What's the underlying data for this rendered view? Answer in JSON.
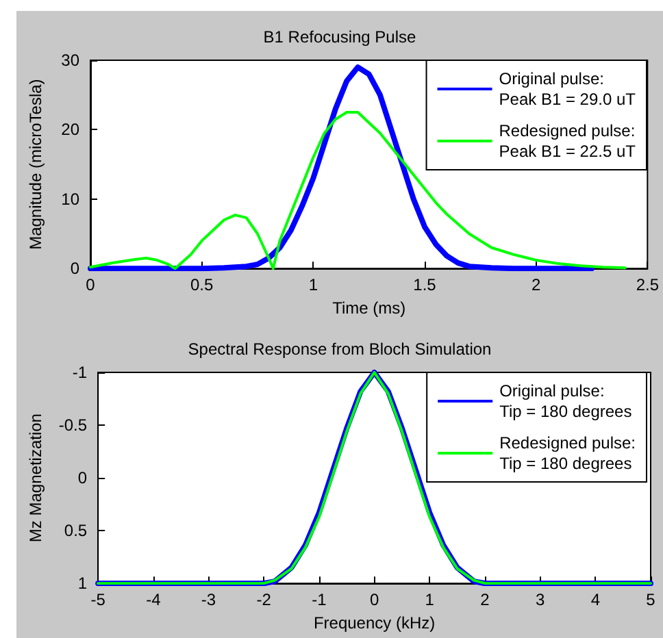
{
  "chart_data": [
    {
      "type": "line",
      "title": "B1 Refocusing Pulse",
      "xlabel": "Time (ms)",
      "ylabel": "Magnitude (microTesla)",
      "xlim": [
        0,
        2.5
      ],
      "xticks": [
        0,
        0.5,
        1,
        1.5,
        2,
        2.5
      ],
      "ylim": [
        0,
        30
      ],
      "yticks": [
        0,
        10,
        20,
        30
      ],
      "grid": false,
      "legend": "top right",
      "marker": "none",
      "line_style": "solid",
      "series": [
        {
          "name": "Original pulse:\nPeak B1 = 29.0 uT",
          "color": "#0000ff",
          "x": [
            0,
            0.1,
            0.2,
            0.3,
            0.4,
            0.5,
            0.6,
            0.7,
            0.75,
            0.8,
            0.85,
            0.9,
            0.95,
            1.0,
            1.05,
            1.1,
            1.15,
            1.2,
            1.25,
            1.3,
            1.35,
            1.4,
            1.45,
            1.5,
            1.55,
            1.6,
            1.65,
            1.7,
            1.8,
            1.9,
            2.0,
            2.1,
            2.25
          ],
          "values": [
            0,
            0,
            0,
            0,
            0,
            0,
            0.1,
            0.3,
            0.6,
            1.5,
            3,
            5.5,
            9,
            13,
            18,
            23,
            27,
            29,
            28,
            25,
            20,
            15,
            10,
            6,
            3.5,
            1.8,
            0.8,
            0.3,
            0.1,
            0,
            0,
            0,
            0
          ]
        },
        {
          "name": "Redesigned pulse:\nPeak B1 = 22.5 uT",
          "color": "#00ff00",
          "x": [
            0,
            0.1,
            0.2,
            0.25,
            0.3,
            0.35,
            0.38,
            0.45,
            0.5,
            0.55,
            0.6,
            0.65,
            0.7,
            0.75,
            0.8,
            0.82,
            0.85,
            0.9,
            0.95,
            1.0,
            1.05,
            1.1,
            1.15,
            1.2,
            1.25,
            1.3,
            1.35,
            1.4,
            1.45,
            1.5,
            1.55,
            1.6,
            1.7,
            1.8,
            1.9,
            2.0,
            2.1,
            2.2,
            2.3,
            2.4
          ],
          "values": [
            0.2,
            0.8,
            1.3,
            1.5,
            1.2,
            0.6,
            0,
            2,
            4,
            5.5,
            7,
            7.7,
            7.3,
            5,
            1.5,
            0,
            4,
            8,
            12,
            16,
            19.5,
            21.5,
            22.5,
            22.5,
            21,
            19.5,
            17.5,
            15.5,
            13.5,
            11.5,
            9.5,
            7.8,
            5,
            3,
            2,
            1.2,
            0.7,
            0.4,
            0.2,
            0.1
          ]
        }
      ]
    },
    {
      "type": "line",
      "title": "Spectral Response from Bloch Simulation",
      "xlabel": "Frequency (kHz)",
      "ylabel": "Mz Magnetization",
      "xlim": [
        -5,
        5
      ],
      "xticks": [
        -5,
        -4,
        -3,
        -2,
        -1,
        0,
        1,
        2,
        3,
        4,
        5
      ],
      "ylim": [
        1,
        -1
      ],
      "yticks": [
        -1,
        -0.5,
        0,
        0.5,
        1
      ],
      "grid": false,
      "legend": "top right",
      "marker": "none",
      "line_style": "solid",
      "series": [
        {
          "name": "Original pulse:\nTip = 180 degrees",
          "color": "#0000ff",
          "x": [
            -5,
            -2,
            -1.8,
            -1.5,
            -1.25,
            -1,
            -0.75,
            -0.5,
            -0.25,
            0,
            0.25,
            0.5,
            0.75,
            1,
            1.25,
            1.5,
            1.8,
            2,
            5
          ],
          "values": [
            1,
            1,
            0.98,
            0.85,
            0.64,
            0.33,
            -0.07,
            -0.47,
            -0.82,
            -1,
            -0.82,
            -0.47,
            -0.07,
            0.33,
            0.64,
            0.85,
            0.98,
            1,
            1
          ]
        },
        {
          "name": "Redesigned pulse:\nTip = 180 degrees",
          "color": "#00ff00",
          "x": [
            -5,
            -2,
            -1.8,
            -1.5,
            -1.25,
            -1,
            -0.75,
            -0.5,
            -0.25,
            0,
            0.25,
            0.5,
            0.75,
            1,
            1.25,
            1.5,
            1.8,
            2,
            5
          ],
          "values": [
            1,
            1,
            0.97,
            0.86,
            0.66,
            0.37,
            -0.03,
            -0.44,
            -0.8,
            -1,
            -0.8,
            -0.44,
            -0.03,
            0.37,
            0.66,
            0.86,
            0.97,
            1,
            1
          ]
        }
      ]
    }
  ]
}
